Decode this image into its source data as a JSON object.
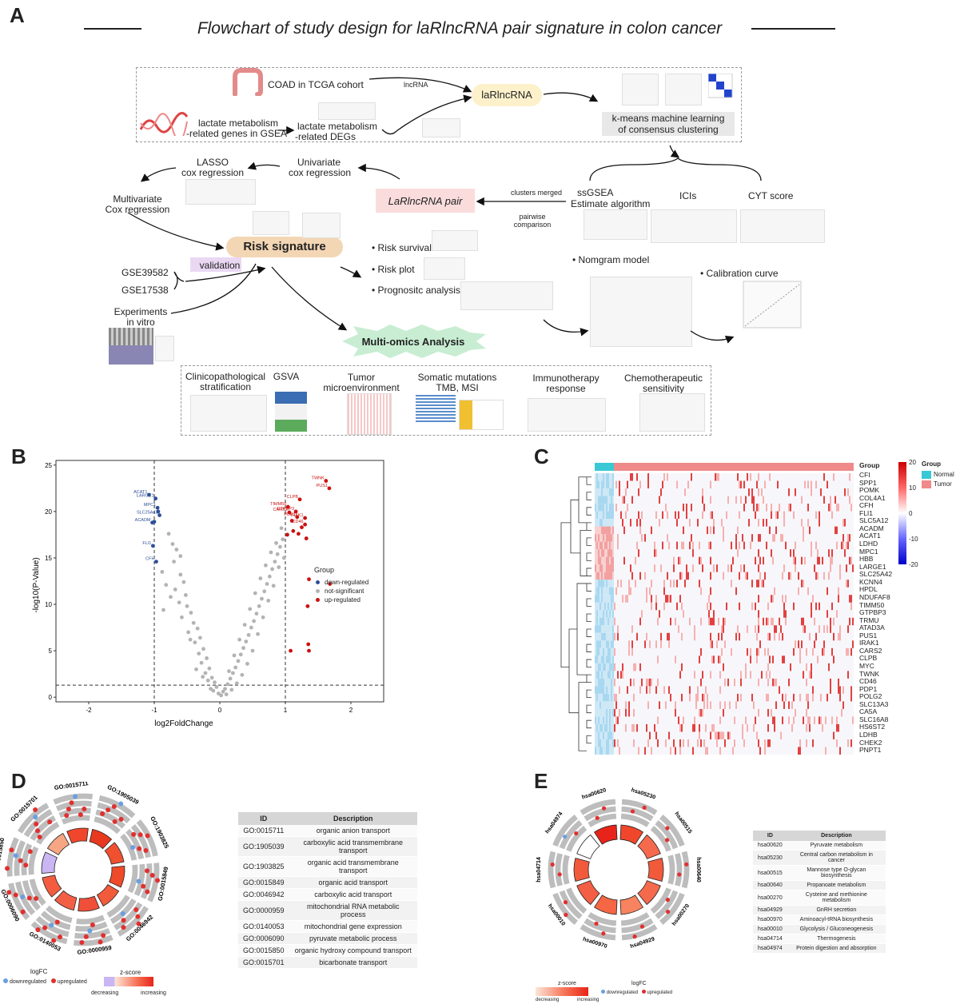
{
  "panelA": {
    "letter": "A",
    "title": "Flowchart of study design for laRlncRNA pair signature in colon cancer",
    "coad": "COAD in TCGA cohort",
    "lncrna_arrow": "lncRNA",
    "larlnc": "laRlncRNA",
    "lactate_genes_1": "lactate metabolism",
    "lactate_genes_2": "-related genes in GSEA",
    "lactate_degs_1": "lactate metabolism",
    "lactate_degs_2": "-related DEGs",
    "kmeans_1": "k-means machine learning",
    "kmeans_2": "of consensus clustering",
    "lasso_1": "LASSO",
    "lasso_2": "cox regression",
    "univ_1": "Univariate",
    "univ_2": "cox regression",
    "multi_1": "Multivariate",
    "multi_2": "Cox regression",
    "pair": "LaRlncRNA pair",
    "clusters": "clusters  merged",
    "pairwise_1": "pairwise",
    "pairwise_2": "comparison",
    "ssgsea_1": "ssGSEA",
    "ssgsea_2": "Estimate algorithm",
    "icis": "ICIs",
    "cyt": "CYT score",
    "risk": "Risk signature",
    "validation": "validation",
    "gse1": "GSE39582",
    "gse2": "GSE17538",
    "exp_1": "Experiments",
    "exp_2": "in vitro",
    "risk_survival": "• Risk survival",
    "risk_plot": "• Risk plot",
    "prognostic": "• Prognositc analysis",
    "nomogram": "• Nomgram model",
    "calibration": "• Calibration curve",
    "multiomics": "Multi-omics Analysis",
    "clin_1": "Clinicopathological",
    "clin_2": "stratification",
    "gsva": "GSVA",
    "tme_1": "Tumor",
    "tme_2": "microenvironment",
    "som_1": "Somatic mutations",
    "som_2": "TMB, MSI",
    "immuno_1": "Immunotherapy",
    "immuno_2": "response",
    "chemo_1": "Chemotherapeutic",
    "chemo_2": "sensitivity"
  },
  "panelB": {
    "letter": "B",
    "xlabel": "log2FoldChange",
    "ylabel": "-log10(P-Value)",
    "legend_title": "Group",
    "legend": [
      "down-regulated",
      "not-significant",
      "up-regulated"
    ],
    "colors": {
      "down": "#2b4f99",
      "ns": "#b3b3b3",
      "up": "#cc1111"
    },
    "chart_data": {
      "type": "scatter",
      "xlim": [
        -2.5,
        2.5
      ],
      "ylim": [
        -0.5,
        25.5
      ],
      "xticks": [
        -2,
        -1,
        0,
        1,
        2
      ],
      "yticks": [
        0,
        5,
        10,
        15,
        20,
        25
      ],
      "vlines": [
        -1,
        1
      ],
      "hline": 1.3,
      "down": [
        {
          "label": "ACAT1",
          "x": -1.08,
          "y": 21.8
        },
        {
          "label": "LARGE1",
          "x": -0.98,
          "y": 21.4
        },
        {
          "label": "MPC1",
          "x": -0.95,
          "y": 20.4
        },
        {
          "label": "SLC25A42",
          "x": -0.92,
          "y": 19.6
        },
        {
          "label": "ACADM",
          "x": -1.03,
          "y": 18.8
        },
        {
          "label": "FLI1",
          "x": -1.02,
          "y": 16.3
        },
        {
          "label": "CFH",
          "x": -0.97,
          "y": 14.6
        },
        {
          "label": "",
          "x": -0.94,
          "y": 20.0
        },
        {
          "label": "",
          "x": -1.0,
          "y": 18.9
        }
      ],
      "up": [
        {
          "label": "TWNK",
          "x": 1.62,
          "y": 23.3
        },
        {
          "label": "PUS1",
          "x": 1.67,
          "y": 22.5
        },
        {
          "label": "CLPB",
          "x": 1.22,
          "y": 21.3
        },
        {
          "label": "TIMM50",
          "x": 1.04,
          "y": 20.5
        },
        {
          "label": "CARS2",
          "x": 1.06,
          "y": 19.9
        },
        {
          "label": "GTPBP3",
          "x": 1.16,
          "y": 20.0
        },
        {
          "label": "PDP1",
          "x": 1.18,
          "y": 19.4
        },
        {
          "label": "IRAK1",
          "x": 1.3,
          "y": 19.3
        },
        {
          "label": "CD46",
          "x": 1.3,
          "y": 18.6
        },
        {
          "label": "",
          "x": 1.1,
          "y": 19.0
        },
        {
          "label": "",
          "x": 1.25,
          "y": 18.3
        },
        {
          "label": "",
          "x": 1.12,
          "y": 17.9
        },
        {
          "label": "",
          "x": 1.2,
          "y": 17.6
        },
        {
          "label": "",
          "x": 1.03,
          "y": 17.5
        },
        {
          "label": "",
          "x": 1.32,
          "y": 17.1
        },
        {
          "label": "",
          "x": 1.36,
          "y": 12.7
        },
        {
          "label": "",
          "x": 1.68,
          "y": 12.2
        },
        {
          "label": "",
          "x": 1.34,
          "y": 9.8
        },
        {
          "label": "",
          "x": 1.35,
          "y": 5.7
        },
        {
          "label": "",
          "x": 1.08,
          "y": 5.0
        },
        {
          "label": "",
          "x": 1.36,
          "y": 5.0
        }
      ],
      "ns": [
        {
          "x": -0.78,
          "y": 17.6
        },
        {
          "x": -0.72,
          "y": 16.5
        },
        {
          "x": -0.66,
          "y": 15.9
        },
        {
          "x": -0.6,
          "y": 15.2
        },
        {
          "x": -0.7,
          "y": 14.6
        },
        {
          "x": -0.6,
          "y": 13.2
        },
        {
          "x": -0.55,
          "y": 12.4
        },
        {
          "x": -0.68,
          "y": 11.6
        },
        {
          "x": -0.52,
          "y": 11.0
        },
        {
          "x": -0.62,
          "y": 10.2
        },
        {
          "x": -0.5,
          "y": 9.8
        },
        {
          "x": -0.44,
          "y": 9.1
        },
        {
          "x": -0.58,
          "y": 8.6
        },
        {
          "x": -0.4,
          "y": 8.0
        },
        {
          "x": -0.34,
          "y": 7.4
        },
        {
          "x": -0.48,
          "y": 7.0
        },
        {
          "x": -0.3,
          "y": 6.4
        },
        {
          "x": -0.38,
          "y": 5.9
        },
        {
          "x": -0.25,
          "y": 5.2
        },
        {
          "x": -0.32,
          "y": 4.7
        },
        {
          "x": -0.2,
          "y": 4.2
        },
        {
          "x": -0.28,
          "y": 3.7
        },
        {
          "x": -0.16,
          "y": 3.1
        },
        {
          "x": -0.22,
          "y": 2.6
        },
        {
          "x": -0.12,
          "y": 2.1
        },
        {
          "x": -0.08,
          "y": 1.6
        },
        {
          "x": -0.18,
          "y": 1.8
        },
        {
          "x": -0.05,
          "y": 1.1
        },
        {
          "x": -0.1,
          "y": 0.7
        },
        {
          "x": -0.02,
          "y": 0.4
        },
        {
          "x": 0.02,
          "y": 0.2
        },
        {
          "x": 0.05,
          "y": 0.6
        },
        {
          "x": -0.88,
          "y": 13.5
        },
        {
          "x": -0.82,
          "y": 12.1
        },
        {
          "x": -0.75,
          "y": 10.8
        },
        {
          "x": -0.86,
          "y": 9.4
        },
        {
          "x": -0.45,
          "y": 6.2
        },
        {
          "x": -0.36,
          "y": 3.0
        },
        {
          "x": -0.26,
          "y": 2.2
        },
        {
          "x": -0.14,
          "y": 0.9
        },
        {
          "x": 0.08,
          "y": 0.9
        },
        {
          "x": 0.12,
          "y": 1.4
        },
        {
          "x": 0.16,
          "y": 2.0
        },
        {
          "x": 0.2,
          "y": 2.6
        },
        {
          "x": 0.24,
          "y": 3.2
        },
        {
          "x": 0.28,
          "y": 3.9
        },
        {
          "x": 0.32,
          "y": 4.6
        },
        {
          "x": 0.36,
          "y": 5.3
        },
        {
          "x": 0.4,
          "y": 6.0
        },
        {
          "x": 0.44,
          "y": 6.7
        },
        {
          "x": 0.48,
          "y": 7.5
        },
        {
          "x": 0.52,
          "y": 8.2
        },
        {
          "x": 0.56,
          "y": 9.0
        },
        {
          "x": 0.6,
          "y": 9.8
        },
        {
          "x": 0.64,
          "y": 10.6
        },
        {
          "x": 0.68,
          "y": 11.4
        },
        {
          "x": 0.72,
          "y": 12.2
        },
        {
          "x": 0.76,
          "y": 13.0
        },
        {
          "x": 0.8,
          "y": 13.8
        },
        {
          "x": 0.84,
          "y": 14.6
        },
        {
          "x": 0.88,
          "y": 15.4
        },
        {
          "x": 0.92,
          "y": 16.2
        },
        {
          "x": 0.96,
          "y": 17.0
        },
        {
          "x": 0.86,
          "y": 16.6
        },
        {
          "x": 0.78,
          "y": 15.6
        },
        {
          "x": 0.7,
          "y": 14.2
        },
        {
          "x": 0.62,
          "y": 12.8
        },
        {
          "x": 0.54,
          "y": 11.2
        },
        {
          "x": 0.46,
          "y": 9.5
        },
        {
          "x": 0.38,
          "y": 7.8
        },
        {
          "x": 0.3,
          "y": 6.2
        },
        {
          "x": 0.22,
          "y": 4.5
        },
        {
          "x": 0.14,
          "y": 2.8
        },
        {
          "x": 0.1,
          "y": 0.3
        },
        {
          "x": 0.18,
          "y": 0.8
        },
        {
          "x": 0.26,
          "y": 1.5
        },
        {
          "x": 0.34,
          "y": 2.4
        },
        {
          "x": 0.42,
          "y": 3.6
        },
        {
          "x": 0.5,
          "y": 5.0
        },
        {
          "x": 0.58,
          "y": 6.8
        },
        {
          "x": 0.66,
          "y": 8.6
        },
        {
          "x": 0.74,
          "y": 10.4
        },
        {
          "x": 0.82,
          "y": 12.0
        },
        {
          "x": 0.9,
          "y": 14.0
        },
        {
          "x": 0.94,
          "y": 18.2
        },
        {
          "x": 0.98,
          "y": 15.0
        }
      ]
    }
  },
  "panelC": {
    "letter": "C",
    "group_label": "Group",
    "legend_title": "Group",
    "legend": [
      "Normal",
      "Tumor"
    ],
    "colorbar_ticks": [
      "20",
      "10",
      "0",
      "-10",
      "-20"
    ],
    "genes": [
      "CFI",
      "SPP1",
      "POMK",
      "COL4A1",
      "CFH",
      "FLI1",
      "SLC5A12",
      "ACADM",
      "ACAT1",
      "LDHD",
      "MPC1",
      "HBB",
      "LARGE1",
      "SLC25A42",
      "KCNN4",
      "HPDL",
      "NDUFAF8",
      "TIMM50",
      "GTPBP3",
      "TRMU",
      "ATAD3A",
      "PUS1",
      "IRAK1",
      "CARS2",
      "CLPB",
      "MYC",
      "TWNK",
      "CD46",
      "PDP1",
      "POLG2",
      "SLC13A3",
      "CA5A",
      "SLC16A8",
      "HS6ST2",
      "LDHB",
      "CHEK2",
      "PNPT1"
    ]
  },
  "panelD": {
    "letter": "D",
    "go_labels": [
      "GO:0015711",
      "GO:1905039",
      "GO:1903825",
      "GO:0015849",
      "GO:0046942",
      "GO:0000959",
      "GO:0140053",
      "GO:0006090",
      "GO:0015850",
      "GO:0015701"
    ],
    "table_headers": [
      "ID",
      "Description"
    ],
    "table": [
      [
        "GO:0015711",
        "organic anion transport"
      ],
      [
        "GO:1905039",
        "carboxylic acid transmembrane transport"
      ],
      [
        "GO:1903825",
        "organic acid transmembrane transport"
      ],
      [
        "GO:0015849",
        "organic acid transport"
      ],
      [
        "GO:0046942",
        "carboxylic acid transport"
      ],
      [
        "GO:0000959",
        "mitochondrial RNA metabolic process"
      ],
      [
        "GO:0140053",
        "mitochondrial gene expression"
      ],
      [
        "GO:0006090",
        "pyruvate metabolic process"
      ],
      [
        "GO:0015850",
        "organic hydroxy compound transport"
      ],
      [
        "GO:0015701",
        "bicarbonate transport"
      ]
    ],
    "legend_logfc": "logFC",
    "legend_down": "downregulated",
    "legend_up": "upregulated",
    "legend_z": "z-score",
    "legend_dec": "decreasing",
    "legend_inc": "increasing"
  },
  "panelE": {
    "letter": "E",
    "kegg_labels": [
      "hsa00620",
      "hsa05230",
      "hsa00515",
      "hsa00640",
      "hsa00270",
      "hsa04929",
      "hsa00970",
      "hsa00010",
      "hsa04714",
      "hsa04974"
    ],
    "table_headers": [
      "ID",
      "Description"
    ],
    "table": [
      [
        "hsa00620",
        "Pyruvate metabolism"
      ],
      [
        "hsa05230",
        "Central carbon metabolism in cancer"
      ],
      [
        "hsa00515",
        "Mannose type O-glycan biosynthesis"
      ],
      [
        "hsa00640",
        "Propanoate metabolism"
      ],
      [
        "hsa00270",
        "Cysteine and methionine metabolism"
      ],
      [
        "hsa04929",
        "GnRH secretion"
      ],
      [
        "hsa00970",
        "Aminoacyl-tRNA biosynthesis"
      ],
      [
        "hsa00010",
        "Glycolysis / Gluconeogenesis"
      ],
      [
        "hsa04714",
        "Thermogenesis"
      ],
      [
        "hsa04974",
        "Protein digestion and absorption"
      ]
    ],
    "legend_z": "z-score",
    "legend_dec": "decreasing",
    "legend_inc": "increasing",
    "legend_logfc": "logFC",
    "legend_down": "downregulated",
    "legend_up": "upregulated"
  }
}
